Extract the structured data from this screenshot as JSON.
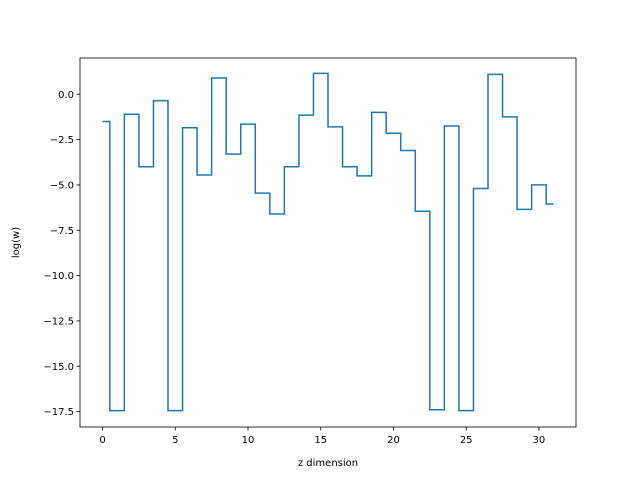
{
  "chart_data": {
    "type": "line",
    "drawstyle": "steps-mid",
    "xlabel": "z dimension",
    "ylabel": "log(w)",
    "xlim": [
      -1.55,
      32.55
    ],
    "ylim": [
      -18.35,
      2.0
    ],
    "xticks": [
      0,
      5,
      10,
      15,
      20,
      25,
      30
    ],
    "yticks": [
      0.0,
      -2.5,
      -5.0,
      -7.5,
      -10.0,
      -12.5,
      -15.0,
      -17.5
    ],
    "xtick_labels": [
      "0",
      "5",
      "10",
      "15",
      "20",
      "25",
      "30"
    ],
    "ytick_labels": [
      "0.0",
      "−2.5",
      "−5.0",
      "−7.5",
      "−10.0",
      "−12.5",
      "−15.0",
      "−17.5"
    ],
    "grid": false,
    "series": [
      {
        "color": "#1f77b4",
        "x": [
          0,
          1,
          2,
          3,
          4,
          5,
          6,
          7,
          8,
          9,
          10,
          11,
          12,
          13,
          14,
          15,
          16,
          17,
          18,
          19,
          20,
          21,
          22,
          23,
          24,
          25,
          26,
          27,
          28,
          29,
          30,
          31
        ],
        "y": [
          -1.5,
          -17.45,
          -1.1,
          -4.0,
          -0.35,
          -17.45,
          -1.85,
          -4.45,
          0.9,
          -3.3,
          -1.65,
          -5.45,
          -6.6,
          -4.0,
          -1.15,
          1.15,
          -1.8,
          -4.0,
          -4.5,
          -1.0,
          -2.15,
          -3.1,
          -6.45,
          -17.4,
          -1.75,
          -17.45,
          -5.2,
          1.1,
          -1.25,
          -6.35,
          -5.0,
          -6.05
        ]
      }
    ]
  }
}
